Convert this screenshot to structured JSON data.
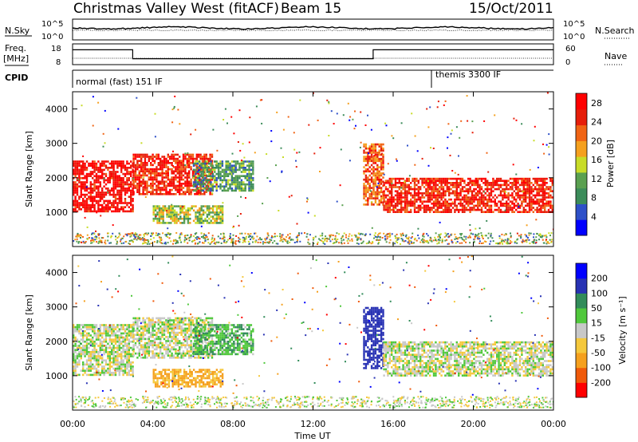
{
  "header": {
    "station": "Christmas Valley West (fitACF)",
    "beam": "Beam 15",
    "date": "15/Oct/2011"
  },
  "sky_panel": {
    "left_label": "N.Sky",
    "right_label": "N.Search",
    "left_ticks": [
      "10^5",
      "10^0"
    ],
    "right_ticks": [
      "10^5",
      "10^0"
    ]
  },
  "freq_panel": {
    "left_label_1": "Freq.",
    "left_label_2": "[MHz]",
    "right_label": "Nave",
    "left_ticks": [
      "18",
      "8"
    ],
    "right_ticks": [
      "60",
      "0"
    ]
  },
  "cpid_panel": {
    "label": "CPID",
    "mode_1": "normal (fast) 151 IF",
    "mode_2": "themis 3300 IF"
  },
  "power_panel": {
    "ylabel": "Slant Range [km]",
    "yticks": [
      "4000",
      "3000",
      "2000",
      "1000"
    ],
    "cbar_label": "Power [dB]",
    "cbar_ticks": [
      "28",
      "24",
      "20",
      "16",
      "12",
      "8",
      "4"
    ]
  },
  "velocity_panel": {
    "ylabel": "Slant Range [km]",
    "yticks": [
      "4000",
      "3000",
      "2000",
      "1000"
    ],
    "cbar_label": "Velocity [m s⁻¹]",
    "cbar_ticks": [
      "200",
      "100",
      "50",
      "15",
      "-15",
      "-50",
      "-100",
      "-200"
    ]
  },
  "xaxis": {
    "label": "Time UT",
    "ticks": [
      "00:00",
      "04:00",
      "08:00",
      "12:00",
      "16:00",
      "20:00",
      "00:00"
    ]
  },
  "colors": {
    "power_scale": [
      "#0000ff",
      "#2e50c8",
      "#3c8c5a",
      "#5aa050",
      "#c8dc28",
      "#f5a01e",
      "#f06414",
      "#e61e0a",
      "#ff0000"
    ],
    "velocity_scale": [
      "#ff0000",
      "#f05a0a",
      "#f5a01e",
      "#f5c83c",
      "#c8c8c8",
      "#50c83c",
      "#328c5a",
      "#2832b4",
      "#0000ff"
    ]
  },
  "chart_data": {
    "type": "heatmap",
    "title": "Christmas Valley West (fitACF)",
    "xlabel": "Time UT",
    "ylabel": "Slant Range [km]",
    "x_range_hours": [
      0,
      24
    ],
    "y_range_km": [
      0,
      4500
    ],
    "cpid_modes": [
      {
        "name": "normal (fast) 151 IF",
        "start_hour": 0,
        "end_hour": 18
      },
      {
        "name": "themis 3300 IF",
        "start_hour": 18,
        "end_hour": 24
      }
    ],
    "frequency_mhz": [
      {
        "start_hour": 0,
        "end_hour": 3,
        "value": 16
      },
      {
        "start_hour": 3,
        "end_hour": 15,
        "value": 10
      },
      {
        "start_hour": 15,
        "end_hour": 24,
        "value": 16
      }
    ],
    "power_colorbar": {
      "label": "Power [dB]",
      "ticks": [
        4,
        8,
        12,
        16,
        20,
        24,
        28
      ],
      "range": [
        0,
        30
      ]
    },
    "velocity_colorbar": {
      "label": "Velocity [m s-1]",
      "ticks": [
        -200,
        -100,
        -50,
        -15,
        15,
        50,
        100,
        200
      ],
      "range": [
        -250,
        250
      ]
    },
    "echo_regions": [
      {
        "start_hour": 0.0,
        "end_hour": 3.0,
        "range_low_km": 1000,
        "range_high_km": 2500,
        "power_db": 28,
        "velocity_ms": 0
      },
      {
        "start_hour": 3.0,
        "end_hour": 7.0,
        "range_low_km": 1500,
        "range_high_km": 2700,
        "power_db": 26,
        "velocity_ms": 0
      },
      {
        "start_hour": 4.0,
        "end_hour": 7.5,
        "range_low_km": 700,
        "range_high_km": 1200,
        "power_db": 14,
        "velocity_ms": -60
      },
      {
        "start_hour": 6.0,
        "end_hour": 9.0,
        "range_low_km": 1600,
        "range_high_km": 2500,
        "power_db": 10,
        "velocity_ms": 40
      },
      {
        "start_hour": 14.5,
        "end_hour": 15.5,
        "range_low_km": 1200,
        "range_high_km": 3000,
        "power_db": 22,
        "velocity_ms": 150
      },
      {
        "start_hour": 15.5,
        "end_hour": 24.0,
        "range_low_km": 1000,
        "range_high_km": 2000,
        "power_db": 26,
        "velocity_ms": 0
      }
    ]
  }
}
